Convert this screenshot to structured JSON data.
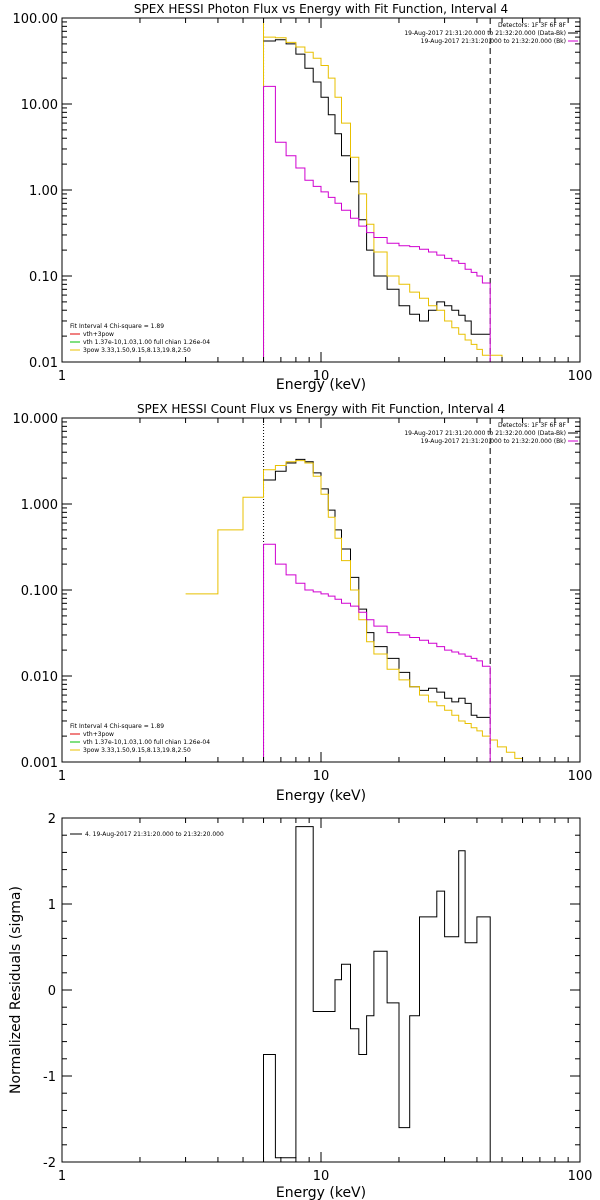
{
  "chart_data": [
    {
      "type": "line",
      "title": "SPEX HESSI Photon Flux vs Energy with Fit Function, Interval 4",
      "xlabel": "Energy (keV)",
      "ylabel": "",
      "xscale": "log",
      "yscale": "log",
      "xlim": [
        1,
        100
      ],
      "ylim": [
        0.01,
        100
      ],
      "xticks": [
        "1",
        "10",
        "100"
      ],
      "yticks": [
        "0.01",
        "0.10",
        "1.00",
        "10.00",
        "100.00"
      ],
      "colors": {
        "data": "#000000",
        "model": "#e8c000",
        "background": "#d000d0",
        "comp_red": "#e00000",
        "comp_green": "#00c000"
      },
      "fit_range": [
        6.0,
        45.0
      ],
      "header_legend": {
        "detectors": "Detectors: 1F 3F 6F 8F",
        "data_label": "19-Aug-2017 21:31:20.000 to 21:32:20.000 (Data-Bk)",
        "bk_label": "19-Aug-2017 21:31:20.000 to 21:32:20.000 (Bk)"
      },
      "fit_legend": {
        "line1": "Fit Interval  4    Chi-square = 1.89",
        "line2": "vth+3pow",
        "line3": "vth 1.37e-10,1.03,1.00   full chian 1.26e-04",
        "line4": "3pow 3.33,1.50,9.15,8.13,19.8,2.50"
      },
      "edges": [
        6.0,
        6.67,
        7.33,
        8.0,
        8.67,
        9.33,
        10.0,
        10.67,
        11.33,
        12.0,
        13.0,
        14.0,
        15.0,
        16.0,
        18.0,
        20.0,
        22.0,
        24.0,
        26.0,
        28.0,
        30.0,
        32.0,
        34.0,
        36.0,
        38.0,
        40.0,
        42.0,
        45.0
      ],
      "series": [
        {
          "name": "data",
          "values": [
            54,
            56,
            50,
            38,
            26,
            18,
            12,
            7.5,
            4.5,
            2.5,
            1.25,
            0.45,
            0.2,
            0.1,
            0.07,
            0.045,
            0.036,
            0.03,
            0.04,
            0.05,
            0.045,
            0.04,
            0.035,
            0.03,
            0.021,
            0.021,
            0.021
          ]
        },
        {
          "name": "model",
          "values": [
            60,
            59,
            52,
            46,
            40,
            34,
            28,
            20,
            12,
            6,
            2.4,
            0.9,
            0.4,
            0.19,
            0.1,
            0.08,
            0.065,
            0.055,
            0.045,
            0.04,
            0.03,
            0.025,
            0.021,
            0.018,
            0.016,
            0.014,
            0.012
          ]
        },
        {
          "name": "background",
          "values": [
            16,
            3.6,
            2.5,
            1.8,
            1.3,
            1.1,
            0.95,
            0.82,
            0.7,
            0.58,
            0.47,
            0.38,
            0.32,
            0.28,
            0.24,
            0.225,
            0.22,
            0.205,
            0.19,
            0.175,
            0.16,
            0.15,
            0.14,
            0.12,
            0.11,
            0.1,
            0.083
          ]
        }
      ],
      "model_extension": [
        {
          "x": [
            3.0,
            6.0
          ],
          "y": [
            0.01,
            100
          ]
        },
        {
          "x": [
            45.0,
            50.0,
            60.0,
            70.0
          ],
          "y": [
            0.012,
            0.01,
            0.01,
            0.01
          ]
        }
      ]
    },
    {
      "type": "line",
      "title": "SPEX HESSI Count Flux vs Energy with Fit Function, Interval 4",
      "xlabel": "Energy (keV)",
      "ylabel": "",
      "xscale": "log",
      "yscale": "log",
      "xlim": [
        1,
        100
      ],
      "ylim": [
        0.001,
        10
      ],
      "xticks": [
        "1",
        "10",
        "100"
      ],
      "yticks": [
        "0.001",
        "0.010",
        "0.100",
        "1.000",
        "10.000"
      ],
      "colors": {
        "data": "#000000",
        "model": "#e8c000",
        "background": "#d000d0",
        "comp_red": "#e00000",
        "comp_green": "#00c000"
      },
      "fit_range": [
        6.0,
        45.0
      ],
      "header_legend": {
        "detectors": "Detectors: 1F 3F 6F 8F",
        "data_label": "19-Aug-2017 21:31:20.000 to 21:32:20.000 (Data-Bk)",
        "bk_label": "19-Aug-2017 21:31:20.000 to 21:32:20.000 (Bk)"
      },
      "fit_legend": {
        "line1": "Fit Interval  4    Chi-square = 1.89",
        "line2": "vth+3pow",
        "line3": "vth 1.37e-10,1.03,1.00   full chian 1.26e-04",
        "line4": "3pow 3.33,1.50,9.15,8.13,19.8,2.50"
      },
      "edges": [
        6.0,
        6.67,
        7.33,
        8.0,
        8.67,
        9.33,
        10.0,
        10.67,
        11.33,
        12.0,
        13.0,
        14.0,
        15.0,
        16.0,
        18.0,
        20.0,
        22.0,
        24.0,
        26.0,
        28.0,
        30.0,
        32.0,
        34.0,
        36.0,
        38.0,
        40.0,
        42.0,
        45.0
      ],
      "series": [
        {
          "name": "data",
          "values": [
            1.9,
            2.4,
            3.0,
            3.3,
            3.1,
            2.3,
            1.5,
            0.85,
            0.5,
            0.3,
            0.14,
            0.06,
            0.032,
            0.022,
            0.016,
            0.011,
            0.0075,
            0.0068,
            0.0072,
            0.0065,
            0.0055,
            0.005,
            0.0055,
            0.0048,
            0.0035,
            0.0033,
            0.0033
          ]
        },
        {
          "name": "model",
          "values": [
            2.5,
            2.8,
            3.1,
            3.2,
            3.0,
            2.1,
            1.3,
            0.7,
            0.4,
            0.22,
            0.1,
            0.045,
            0.025,
            0.018,
            0.012,
            0.009,
            0.0075,
            0.006,
            0.005,
            0.0045,
            0.004,
            0.0035,
            0.003,
            0.0028,
            0.0025,
            0.0023,
            0.002
          ]
        },
        {
          "name": "background",
          "values": [
            0.34,
            0.2,
            0.15,
            0.12,
            0.1,
            0.095,
            0.09,
            0.085,
            0.078,
            0.07,
            0.065,
            0.055,
            0.045,
            0.038,
            0.032,
            0.03,
            0.028,
            0.026,
            0.024,
            0.022,
            0.02,
            0.019,
            0.018,
            0.017,
            0.016,
            0.015,
            0.013
          ]
        }
      ],
      "model_extension": [
        {
          "x": [
            3.0,
            4.0,
            5.0,
            6.0
          ],
          "y": [
            0.09,
            0.5,
            1.2,
            2.5
          ]
        },
        {
          "x": [
            45.0,
            48.0,
            52.0,
            56.0,
            60.0,
            66.0
          ],
          "y": [
            0.0018,
            0.0015,
            0.0013,
            0.0011,
            0.001,
            0.001
          ]
        }
      ]
    },
    {
      "type": "line",
      "title": "",
      "xlabel": "Energy (keV)",
      "ylabel": "Normalized Residuals (sigma)",
      "xscale": "log",
      "xlim": [
        1,
        100
      ],
      "ylim": [
        -2,
        2
      ],
      "xticks": [
        "1",
        "10",
        "100"
      ],
      "yticks": [
        "-2",
        "-1",
        "0",
        "1",
        "2"
      ],
      "legend": "4. 19-Aug-2017 21:31:20.000 to 21:32:20.000",
      "edges": [
        6.0,
        6.67,
        7.33,
        8.0,
        8.67,
        9.33,
        10.0,
        10.67,
        11.33,
        12.0,
        13.0,
        14.0,
        15.0,
        16.0,
        18.0,
        20.0,
        22.0,
        24.0,
        26.0,
        28.0,
        30.0,
        32.0,
        34.0,
        36.0,
        38.0,
        40.0,
        42.0,
        45.0
      ],
      "values": [
        -0.75,
        -1.95,
        -1.95,
        1.9,
        1.9,
        -0.25,
        -0.25,
        -0.25,
        0.12,
        0.3,
        -0.45,
        -0.75,
        -0.3,
        0.45,
        -0.15,
        -1.6,
        -0.3,
        0.85,
        0.85,
        1.15,
        0.62,
        0.62,
        1.62,
        0.55,
        0.55,
        0.85,
        0.85
      ]
    }
  ]
}
